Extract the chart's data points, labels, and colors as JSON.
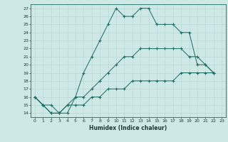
{
  "xlabel": "Humidex (Indice chaleur)",
  "background_color": "#cde8e5",
  "grid_color": "#b8d8d5",
  "line_color": "#1a6b60",
  "xlim": [
    -0.5,
    23.5
  ],
  "ylim": [
    13.5,
    27.5
  ],
  "yticks": [
    14,
    15,
    16,
    17,
    18,
    19,
    20,
    21,
    22,
    23,
    24,
    25,
    26,
    27
  ],
  "xticks": [
    0,
    1,
    2,
    3,
    4,
    5,
    6,
    7,
    8,
    9,
    10,
    11,
    12,
    13,
    14,
    15,
    16,
    17,
    18,
    19,
    20,
    21,
    22,
    23
  ],
  "series": [
    {
      "x": [
        0,
        1,
        2,
        3,
        4,
        5,
        6,
        7,
        8,
        9,
        10,
        11,
        12,
        13,
        14,
        15,
        16,
        17,
        18,
        19,
        20,
        21,
        22
      ],
      "y": [
        16,
        15,
        15,
        14,
        14,
        16,
        19,
        21,
        23,
        25,
        27,
        26,
        26,
        27,
        27,
        25,
        25,
        25,
        24,
        24,
        20,
        20,
        19
      ]
    },
    {
      "x": [
        0,
        1,
        2,
        3,
        4,
        5,
        6,
        7,
        8,
        9,
        10,
        11,
        12,
        13,
        14,
        15,
        16,
        17,
        18,
        19,
        20,
        21,
        22
      ],
      "y": [
        16,
        15,
        14,
        14,
        15,
        16,
        16,
        17,
        18,
        19,
        20,
        21,
        21,
        22,
        22,
        22,
        22,
        22,
        22,
        21,
        21,
        20,
        19
      ]
    },
    {
      "x": [
        0,
        1,
        2,
        3,
        4,
        5,
        6,
        7,
        8,
        9,
        10,
        11,
        12,
        13,
        14,
        15,
        16,
        17,
        18,
        19,
        20,
        21,
        22
      ],
      "y": [
        16,
        15,
        14,
        14,
        15,
        15,
        15,
        16,
        16,
        17,
        17,
        17,
        18,
        18,
        18,
        18,
        18,
        18,
        19,
        19,
        19,
        19,
        19
      ]
    }
  ]
}
